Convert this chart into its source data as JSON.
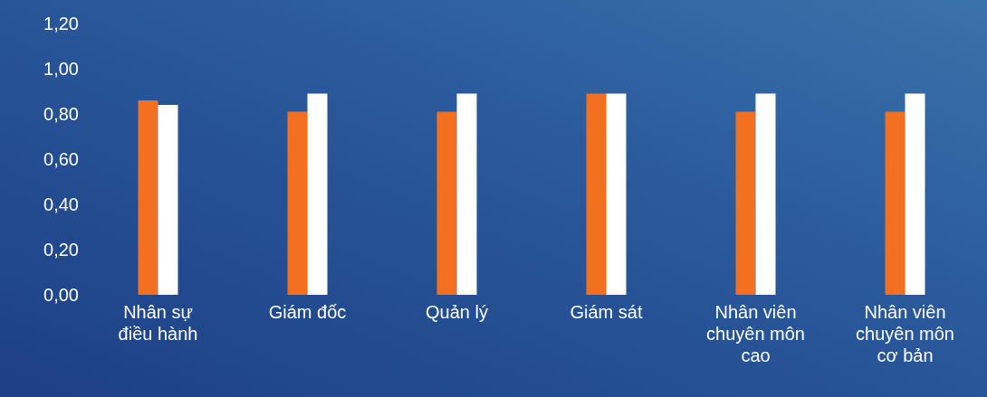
{
  "chart_data": {
    "type": "bar",
    "categories": [
      "Nhân sự điều hành",
      "Giám đốc",
      "Quản lý",
      "Giám sát",
      "Nhân viên chuyên môn cao",
      "Nhân viên chuyên môn cơ bản"
    ],
    "series": [
      {
        "color": "#f37021",
        "values": [
          0.86,
          0.81,
          0.81,
          0.89,
          0.81,
          0.81
        ]
      },
      {
        "color": "#ffffff",
        "values": [
          0.84,
          0.89,
          0.89,
          0.89,
          0.89,
          0.89
        ]
      }
    ],
    "ylim": [
      0,
      1.2
    ],
    "yticks": [
      {
        "value": 0,
        "label": "0,00"
      },
      {
        "value": 0.2,
        "label": "0,20"
      },
      {
        "value": 0.4,
        "label": "0,40"
      },
      {
        "value": 0.6,
        "label": "0,60"
      },
      {
        "value": 0.8,
        "label": "0,80"
      },
      {
        "value": 1.0,
        "label": "1,00"
      },
      {
        "value": 1.2,
        "label": "1,20"
      }
    ],
    "grid": false
  }
}
